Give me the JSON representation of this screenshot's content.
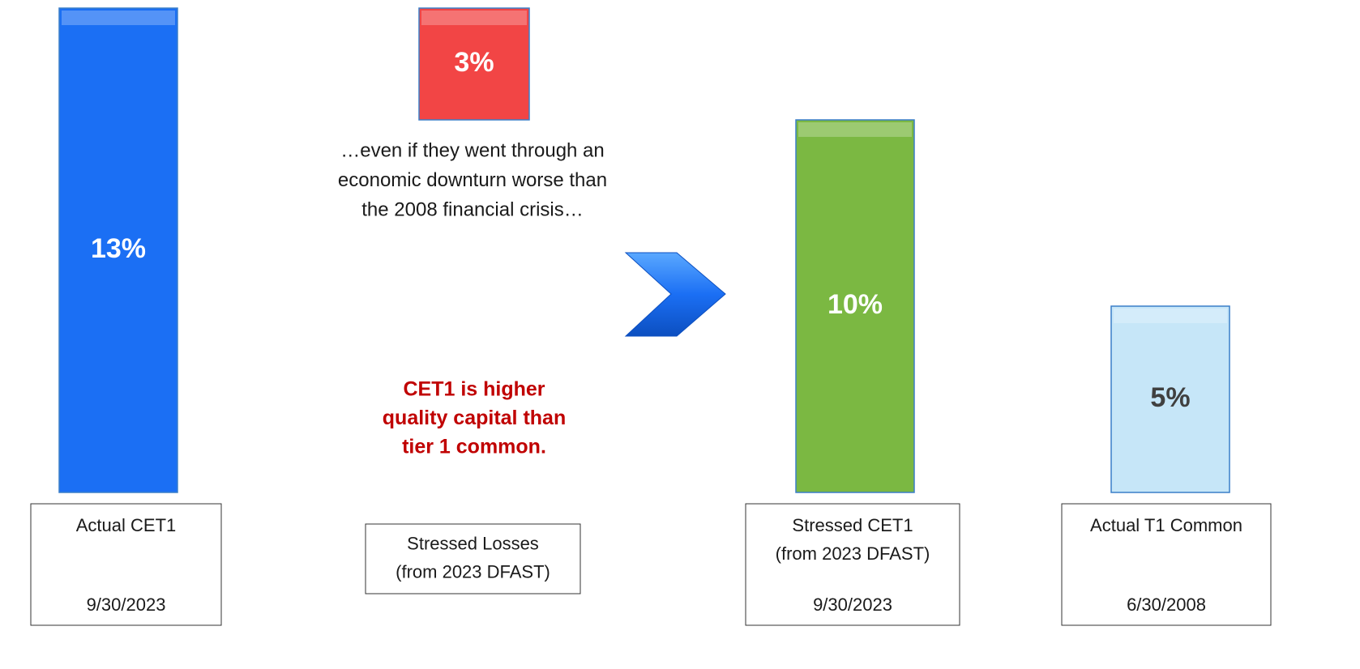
{
  "chart_data": {
    "type": "waterfall",
    "categories": [
      [
        "Actual CET1"
      ],
      [
        "Stressed Losses",
        "(from 2023 DFAST)"
      ],
      [
        "Stressed CET1",
        "(from 2023 DFAST)"
      ],
      [
        "Actual T1 Common"
      ]
    ],
    "dates": [
      "9/30/2023",
      null,
      "9/30/2023",
      "6/30/2008"
    ],
    "values": [
      13,
      3,
      10,
      5
    ],
    "value_labels": [
      "13%",
      "3%",
      "10%",
      "5%"
    ],
    "measures": [
      "absolute",
      "decrease",
      "absolute",
      "absolute"
    ],
    "colors": [
      "#1b6ff4",
      "#f24545",
      "#7bb842",
      "#c6e6f8"
    ],
    "label_colors": [
      "#ffffff",
      "#ffffff",
      "#ffffff",
      "#404040"
    ],
    "ylim": [
      0,
      13
    ],
    "annotations": [
      {
        "lines": [
          "…even if they went through an",
          "economic downturn worse than",
          "the 2008 financial crisis…"
        ],
        "color": "#1a1a1a",
        "bold": false
      },
      {
        "lines": [
          "CET1 is higher",
          "quality capital than",
          "tier 1 common."
        ],
        "color": "#c00000",
        "bold": true
      }
    ]
  }
}
